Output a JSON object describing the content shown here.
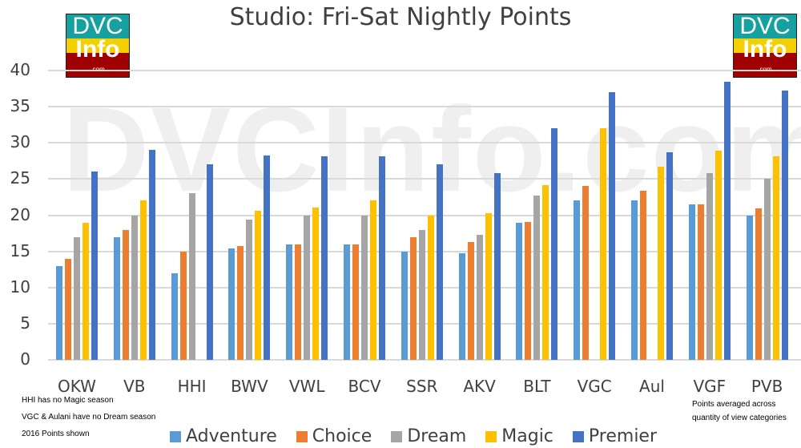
{
  "chart_data": {
    "type": "bar",
    "title": "Studio: Fri-Sat Nightly Points",
    "xlabel": "",
    "ylabel": "",
    "ylim": [
      0,
      40
    ],
    "yticks": [
      0,
      5,
      10,
      15,
      20,
      25,
      30,
      35,
      40
    ],
    "grid": true,
    "legend_position": "bottom",
    "categories": [
      "OKW",
      "VB",
      "HHI",
      "BWV",
      "VWL",
      "BCV",
      "SSR",
      "AKV",
      "BLT",
      "VGC",
      "Aul",
      "VGF",
      "PVB"
    ],
    "series": [
      {
        "name": "Adventure",
        "color": "#5b9bd5",
        "values": [
          13,
          17,
          12,
          15.4,
          16,
          16,
          15,
          14.7,
          18.9,
          22,
          22,
          21.5,
          20
        ]
      },
      {
        "name": "Choice",
        "color": "#ed7d31",
        "values": [
          14,
          18,
          15,
          15.7,
          16,
          16,
          17,
          16.3,
          19.1,
          24,
          23.4,
          21.5,
          20.9
        ]
      },
      {
        "name": "Dream",
        "color": "#a5a5a5",
        "values": [
          17,
          20,
          23,
          19.4,
          20,
          20,
          18,
          17.3,
          22.7,
          null,
          null,
          25.8,
          25
        ]
      },
      {
        "name": "Magic",
        "color": "#ffc000",
        "values": [
          19,
          22,
          null,
          20.6,
          21,
          22,
          20,
          20.3,
          24.1,
          32,
          26.7,
          28.9,
          28.1
        ]
      },
      {
        "name": "Premier",
        "color": "#4472c4",
        "values": [
          26,
          29,
          27,
          28.2,
          28.1,
          28.1,
          27,
          25.8,
          32,
          37,
          28.7,
          38.5,
          37.2
        ]
      }
    ],
    "annotations": [
      "HHI has no Magic season",
      "VGC & Aulani have no Dream season",
      "2016 Points shown",
      "Points averaged across",
      "quantity of view categories"
    ]
  },
  "watermark": "DVCInfo.com",
  "logo": {
    "line1": "DVC",
    "line2": "Info",
    "line3": ".com"
  },
  "notes": {
    "left": [
      "HHI has no Magic season",
      "VGC & Aulani have no Dream season",
      "2016 Points shown"
    ],
    "right": [
      "Points averaged across",
      "quantity of view categories"
    ]
  }
}
